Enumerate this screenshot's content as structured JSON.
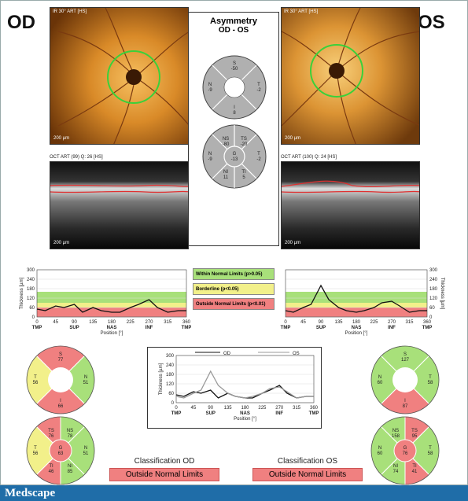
{
  "od": {
    "eye": "OD",
    "ir_caption": "IR 30° ART [HS]",
    "ir_scale": "200 µm",
    "oct_caption": "OCT ART (99) Q: 26 [HS]",
    "oct_scale": "200 µm",
    "classification_label": "Classification OD",
    "classification_value": "Outside Normal Limits",
    "sectors6": {
      "S": "77",
      "T": "56",
      "N": "51",
      "I": "66"
    },
    "sectors8": {
      "TS": "76",
      "NS": "78",
      "T": "56",
      "G": "63",
      "N": "51",
      "TI": "46",
      "NI": "85"
    }
  },
  "os": {
    "eye": "OS",
    "ir_caption": "IR 30° ART [HS]",
    "ir_scale": "200 µm",
    "oct_caption": "OCT ART (100) Q: 24 [HS]",
    "oct_scale": "200 µm",
    "classification_label": "Classification OS",
    "classification_value": "Outside Normal Limits",
    "sectors6": {
      "S": "127",
      "T": "58",
      "N": "60",
      "I": "87"
    },
    "sectors8": {
      "TS": "95",
      "NS": "158",
      "T": "58",
      "G": "76",
      "N": "60",
      "TI": "41",
      "NI": "74"
    }
  },
  "asymmetry": {
    "title": "Asymmetry",
    "subtitle": "OD - OS",
    "s4": {
      "S": "-50",
      "T": "-2",
      "N": "-9",
      "I": "8"
    },
    "s8": {
      "TS": "-20",
      "NS": "-80",
      "T": "-2",
      "G": "-13",
      "N": "-9",
      "TI": "5",
      "NI": "11"
    }
  },
  "legend": {
    "within": "Within Normal Limits (p>0.05)",
    "borderline": "Borderline (p<0.05)",
    "outside": "Outside Normal Limits (p<0.01)"
  },
  "plot_labels": {
    "ylabel": "Thickness [µm]",
    "xlabel": "Position [°]",
    "yticks": [
      "0",
      "60",
      "120",
      "180",
      "240",
      "300"
    ],
    "xticks": [
      "0",
      "45",
      "90",
      "135",
      "180",
      "225",
      "270",
      "315",
      "360"
    ],
    "regions": [
      "TMP",
      "SUP",
      "NAS",
      "INF",
      "TMP"
    ]
  },
  "compare": {
    "legend_od": "OD",
    "legend_os": "OS"
  },
  "footer": {
    "brand": "Medscape"
  },
  "colors": {
    "green": "#a8e07a",
    "yellow": "#f2f08a",
    "red": "#f08080",
    "od_line": "#111111",
    "os_line": "#999999",
    "footer": "#1f6da8"
  },
  "chart_data": [
    {
      "type": "line",
      "x": [
        0,
        20,
        45,
        65,
        90,
        110,
        135,
        155,
        180,
        200,
        225,
        245,
        270,
        290,
        315,
        340,
        360
      ],
      "series": [
        {
          "values": [
            50,
            40,
            70,
            60,
            80,
            30,
            60,
            40,
            30,
            30,
            60,
            80,
            110,
            60,
            30,
            40,
            40
          ]
        }
      ],
      "ylim": [
        0,
        300
      ],
      "xlim": [
        0,
        360
      ]
    },
    {
      "type": "line",
      "x": [
        0,
        20,
        45,
        65,
        90,
        110,
        135,
        155,
        180,
        200,
        225,
        245,
        270,
        290,
        315,
        340,
        360
      ],
      "series": [
        {
          "values": [
            40,
            30,
            60,
            80,
            200,
            110,
            60,
            40,
            30,
            40,
            60,
            90,
            100,
            70,
            30,
            40,
            40
          ]
        }
      ],
      "ylim": [
        0,
        300
      ],
      "xlim": [
        0,
        360
      ]
    },
    {
      "type": "line",
      "x": [
        0,
        20,
        45,
        65,
        90,
        110,
        135,
        155,
        180,
        200,
        225,
        245,
        270,
        290,
        315,
        340,
        360
      ],
      "series": [
        {
          "name": "OD",
          "values": [
            50,
            40,
            70,
            60,
            80,
            30,
            60,
            40,
            30,
            30,
            60,
            80,
            110,
            60,
            30,
            40,
            40
          ]
        },
        {
          "name": "OS",
          "values": [
            40,
            30,
            60,
            80,
            200,
            110,
            60,
            40,
            30,
            40,
            60,
            90,
            100,
            70,
            30,
            40,
            40
          ]
        }
      ],
      "ylim": [
        0,
        300
      ],
      "xlim": [
        0,
        360
      ]
    }
  ]
}
